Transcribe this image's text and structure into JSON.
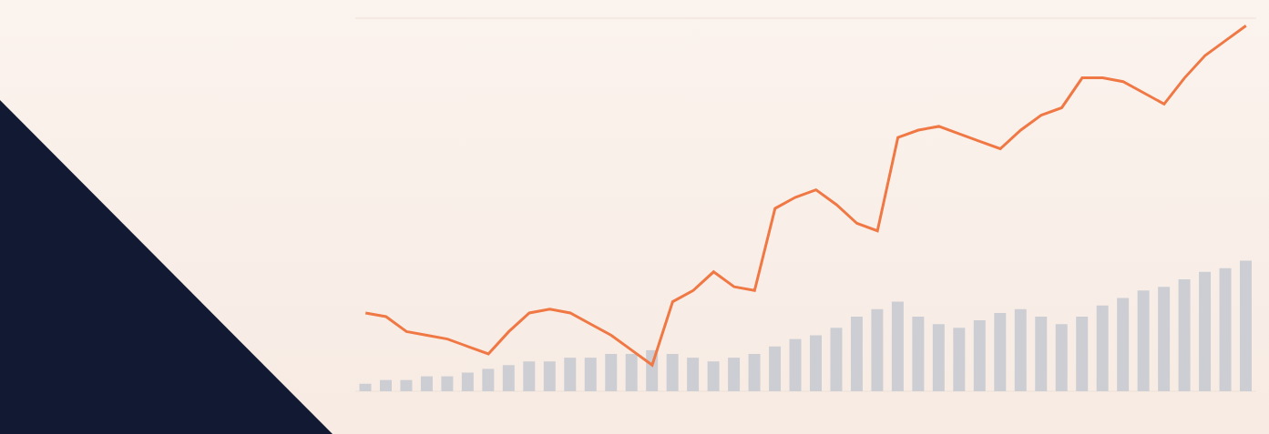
{
  "chart_data": {
    "type": "line",
    "categories": [
      null,
      null,
      null,
      null,
      null,
      null,
      null,
      null,
      null,
      null,
      null,
      null,
      null,
      null,
      null,
      null,
      null,
      null,
      null,
      null,
      null,
      null,
      null,
      null,
      null,
      null,
      null,
      null,
      null,
      null,
      null,
      null,
      null,
      null,
      null,
      null,
      null,
      null,
      null,
      null,
      null,
      null,
      null,
      null
    ],
    "series": [
      {
        "type": "line",
        "color": "#f07845",
        "values": [
          21,
          20,
          16,
          15,
          14,
          12,
          10,
          16,
          21,
          22,
          21,
          18,
          15,
          11,
          7,
          24,
          27,
          32,
          28,
          27,
          49,
          52,
          54,
          50,
          45,
          43,
          68,
          70,
          71,
          69,
          67,
          65,
          70,
          74,
          76,
          84,
          84,
          83,
          80,
          77,
          84,
          90,
          94,
          98
        ]
      },
      {
        "type": "bar",
        "color": "#cdced3",
        "values": [
          2,
          3,
          3,
          4,
          4,
          5,
          6,
          7,
          8,
          8,
          9,
          9,
          10,
          10,
          11,
          10,
          9,
          8,
          9,
          10,
          12,
          14,
          15,
          17,
          20,
          22,
          24,
          20,
          18,
          17,
          19,
          21,
          22,
          20,
          18,
          20,
          23,
          25,
          27,
          28,
          30,
          32,
          33,
          35
        ]
      }
    ],
    "ylim": [
      0,
      100
    ],
    "yticks": [
      0,
      20,
      40,
      60,
      80,
      100
    ],
    "grid": true,
    "tick_labels": false
  }
}
